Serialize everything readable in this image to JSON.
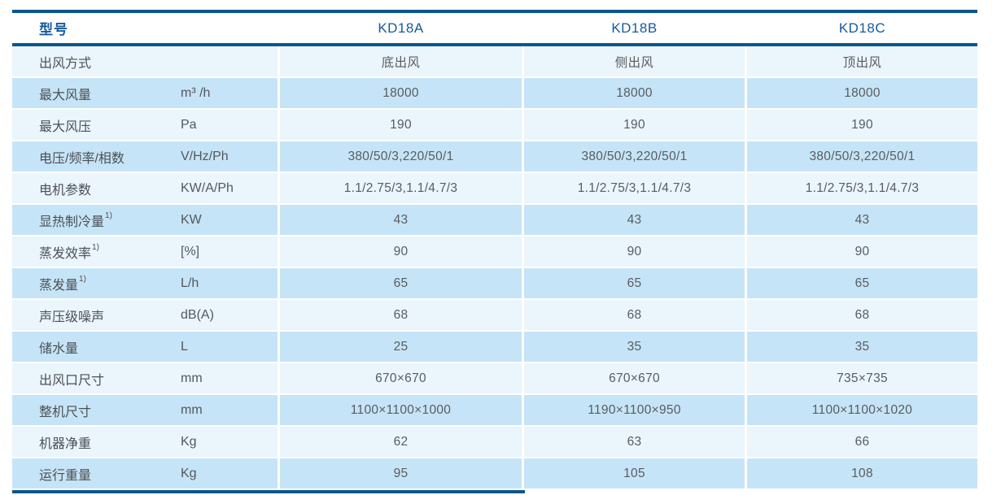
{
  "colors": {
    "border_navy": "#0a568f",
    "header_text": "#155a9c",
    "row_blue": "#c6e4f7",
    "row_light": "#eaf5fc",
    "label_text": "#4b5055",
    "value_text": "#595c5f"
  },
  "table": {
    "header": {
      "model_label": "型号",
      "columns": [
        "KD18A",
        "KD18B",
        "KD18C"
      ]
    },
    "rows": [
      {
        "label": "出风方式",
        "sup": "",
        "unit": "",
        "values": [
          "底出风",
          "侧出风",
          "顶出风"
        ]
      },
      {
        "label": "最大风量",
        "sup": "",
        "unit": "m³ /h",
        "values": [
          "18000",
          "18000",
          "18000"
        ]
      },
      {
        "label": "最大风压",
        "sup": "",
        "unit": "Pa",
        "values": [
          "190",
          "190",
          "190"
        ]
      },
      {
        "label": "电压/频率/相数",
        "sup": "",
        "unit": "V/Hz/Ph",
        "values": [
          "380/50/3,220/50/1",
          "380/50/3,220/50/1",
          "380/50/3,220/50/1"
        ]
      },
      {
        "label": "电机参数",
        "sup": "",
        "unit": "KW/A/Ph",
        "values": [
          "1.1/2.75/3,1.1/4.7/3",
          "1.1/2.75/3,1.1/4.7/3",
          "1.1/2.75/3,1.1/4.7/3"
        ]
      },
      {
        "label": "显热制冷量",
        "sup": "1)",
        "unit": "KW",
        "values": [
          "43",
          "43",
          "43"
        ]
      },
      {
        "label": "蒸发效率",
        "sup": "1)",
        "unit": "[%]",
        "values": [
          "90",
          "90",
          "90"
        ]
      },
      {
        "label": "蒸发量",
        "sup": "1)",
        "unit": "L/h",
        "values": [
          "65",
          "65",
          "65"
        ]
      },
      {
        "label": "声压级噪声",
        "sup": "",
        "unit": "dB(A)",
        "values": [
          "68",
          "68",
          "68"
        ]
      },
      {
        "label": "储水量",
        "sup": "",
        "unit": "L",
        "values": [
          "25",
          "35",
          "35"
        ]
      },
      {
        "label": "出风口尺寸",
        "sup": "",
        "unit": "mm",
        "values": [
          "670×670",
          "670×670",
          "735×735"
        ]
      },
      {
        "label": "整机尺寸",
        "sup": "",
        "unit": "mm",
        "values": [
          "1100×1100×1000",
          "1190×1100×950",
          "1100×1100×1020"
        ]
      },
      {
        "label": "机器净重",
        "sup": "",
        "unit": "Kg",
        "values": [
          "62",
          "63",
          "66"
        ]
      },
      {
        "label": "运行重量",
        "sup": "",
        "unit": "Kg",
        "values": [
          "95",
          "105",
          "108"
        ]
      }
    ]
  }
}
